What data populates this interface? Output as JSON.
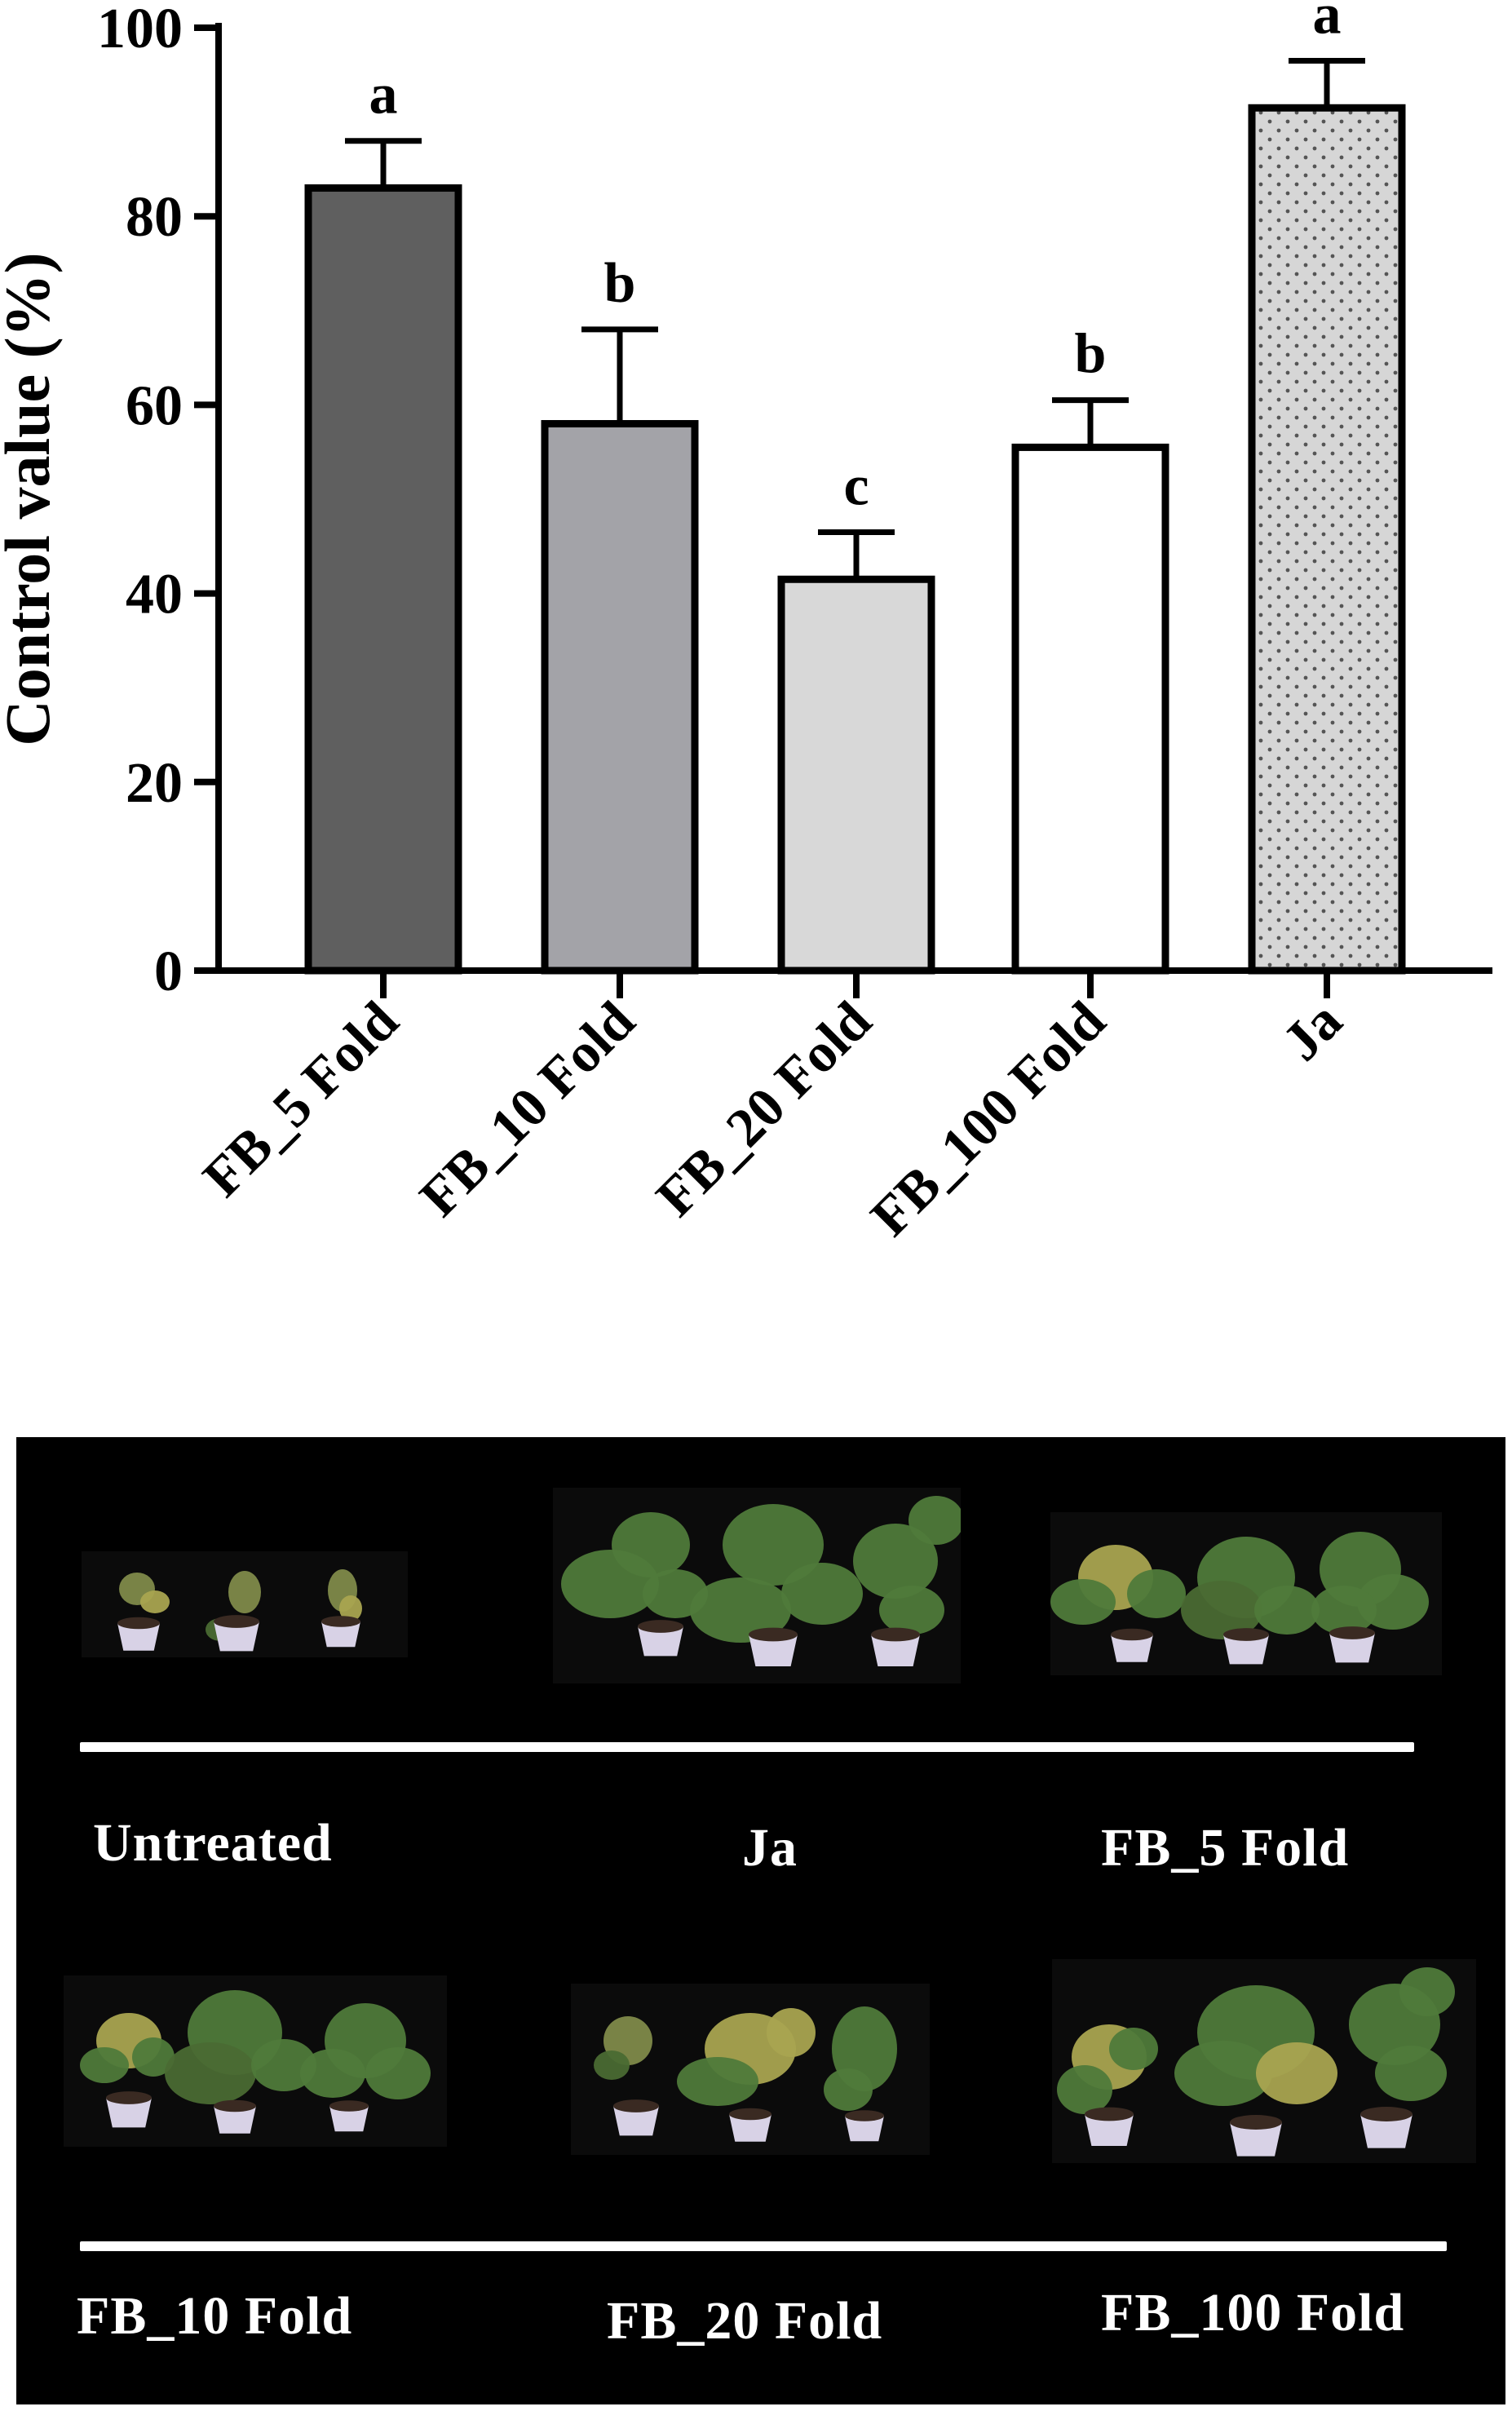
{
  "chart_data": {
    "type": "bar",
    "ylabel": "Control value (%)",
    "ylim": [
      0,
      100
    ],
    "yticks": [
      0,
      20,
      40,
      60,
      80,
      100
    ],
    "categories": [
      "FB_5 Fold",
      "FB_10 Fold",
      "FB_20 Fold",
      "FB_100 Fold",
      "Ja"
    ],
    "values": [
      83,
      58,
      41.5,
      55.5,
      91.5
    ],
    "errors": [
      5,
      10,
      5,
      5,
      5
    ],
    "significance_letters": [
      "a",
      "b",
      "c",
      "b",
      "a"
    ],
    "bar_colors": [
      "#5f5f5f",
      "#a3a3a8",
      "#d8d8d8",
      "#ffffff",
      "#d6d6d6"
    ],
    "dotted_pattern": [
      false,
      false,
      false,
      false,
      true
    ],
    "grid": false,
    "legend": "none"
  },
  "photo_panel": {
    "row1_labels": [
      "Untreated",
      "Ja",
      "FB_5 Fold"
    ],
    "row2_labels": [
      "FB_10 Fold",
      "FB_20 Fold",
      "FB_100 Fold"
    ],
    "background": "#000000",
    "plant_color": "#4f7a3a",
    "pot_color": "#d8d2e6"
  }
}
